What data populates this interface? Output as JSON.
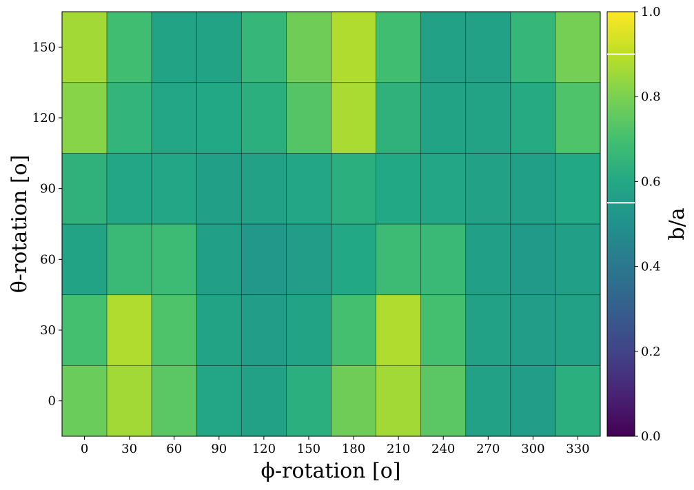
{
  "chart_data": {
    "type": "heatmap",
    "x": [
      0,
      30,
      60,
      90,
      120,
      150,
      180,
      210,
      240,
      270,
      300,
      330
    ],
    "y": [
      0,
      30,
      60,
      90,
      120,
      150
    ],
    "x_tick_labels": [
      "0",
      "30",
      "60",
      "90",
      "120",
      "150",
      "180",
      "210",
      "240",
      "270",
      "300",
      "330"
    ],
    "y_tick_labels": [
      "0",
      "30",
      "60",
      "90",
      "120",
      "150"
    ],
    "xlabel": "ϕ-rotation [o]",
    "ylabel": "θ-rotation [o]",
    "values": [
      [
        0.77,
        0.86,
        0.74,
        0.59,
        0.57,
        0.63,
        0.78,
        0.86,
        0.74,
        0.57,
        0.55,
        0.63
      ],
      [
        0.7,
        0.88,
        0.72,
        0.58,
        0.55,
        0.58,
        0.7,
        0.88,
        0.7,
        0.57,
        0.55,
        0.57
      ],
      [
        0.58,
        0.67,
        0.68,
        0.56,
        0.53,
        0.55,
        0.6,
        0.68,
        0.67,
        0.56,
        0.54,
        0.56
      ],
      [
        0.64,
        0.59,
        0.59,
        0.56,
        0.57,
        0.59,
        0.63,
        0.6,
        0.59,
        0.57,
        0.56,
        0.6
      ],
      [
        0.82,
        0.65,
        0.59,
        0.6,
        0.63,
        0.73,
        0.87,
        0.64,
        0.58,
        0.58,
        0.61,
        0.72
      ],
      [
        0.86,
        0.69,
        0.58,
        0.58,
        0.66,
        0.78,
        0.88,
        0.69,
        0.57,
        0.57,
        0.66,
        0.79
      ]
    ],
    "colorbar": {
      "label": "b/a",
      "range": [
        0.0,
        1.0
      ],
      "ticks": [
        0.0,
        0.2,
        0.4,
        0.6,
        0.8,
        1.0
      ],
      "tick_labels": [
        "0.0",
        "0.2",
        "0.4",
        "0.6",
        "0.8",
        "1.0"
      ],
      "marker_lines": [
        0.55,
        0.9
      ],
      "colormap": "viridis"
    }
  }
}
